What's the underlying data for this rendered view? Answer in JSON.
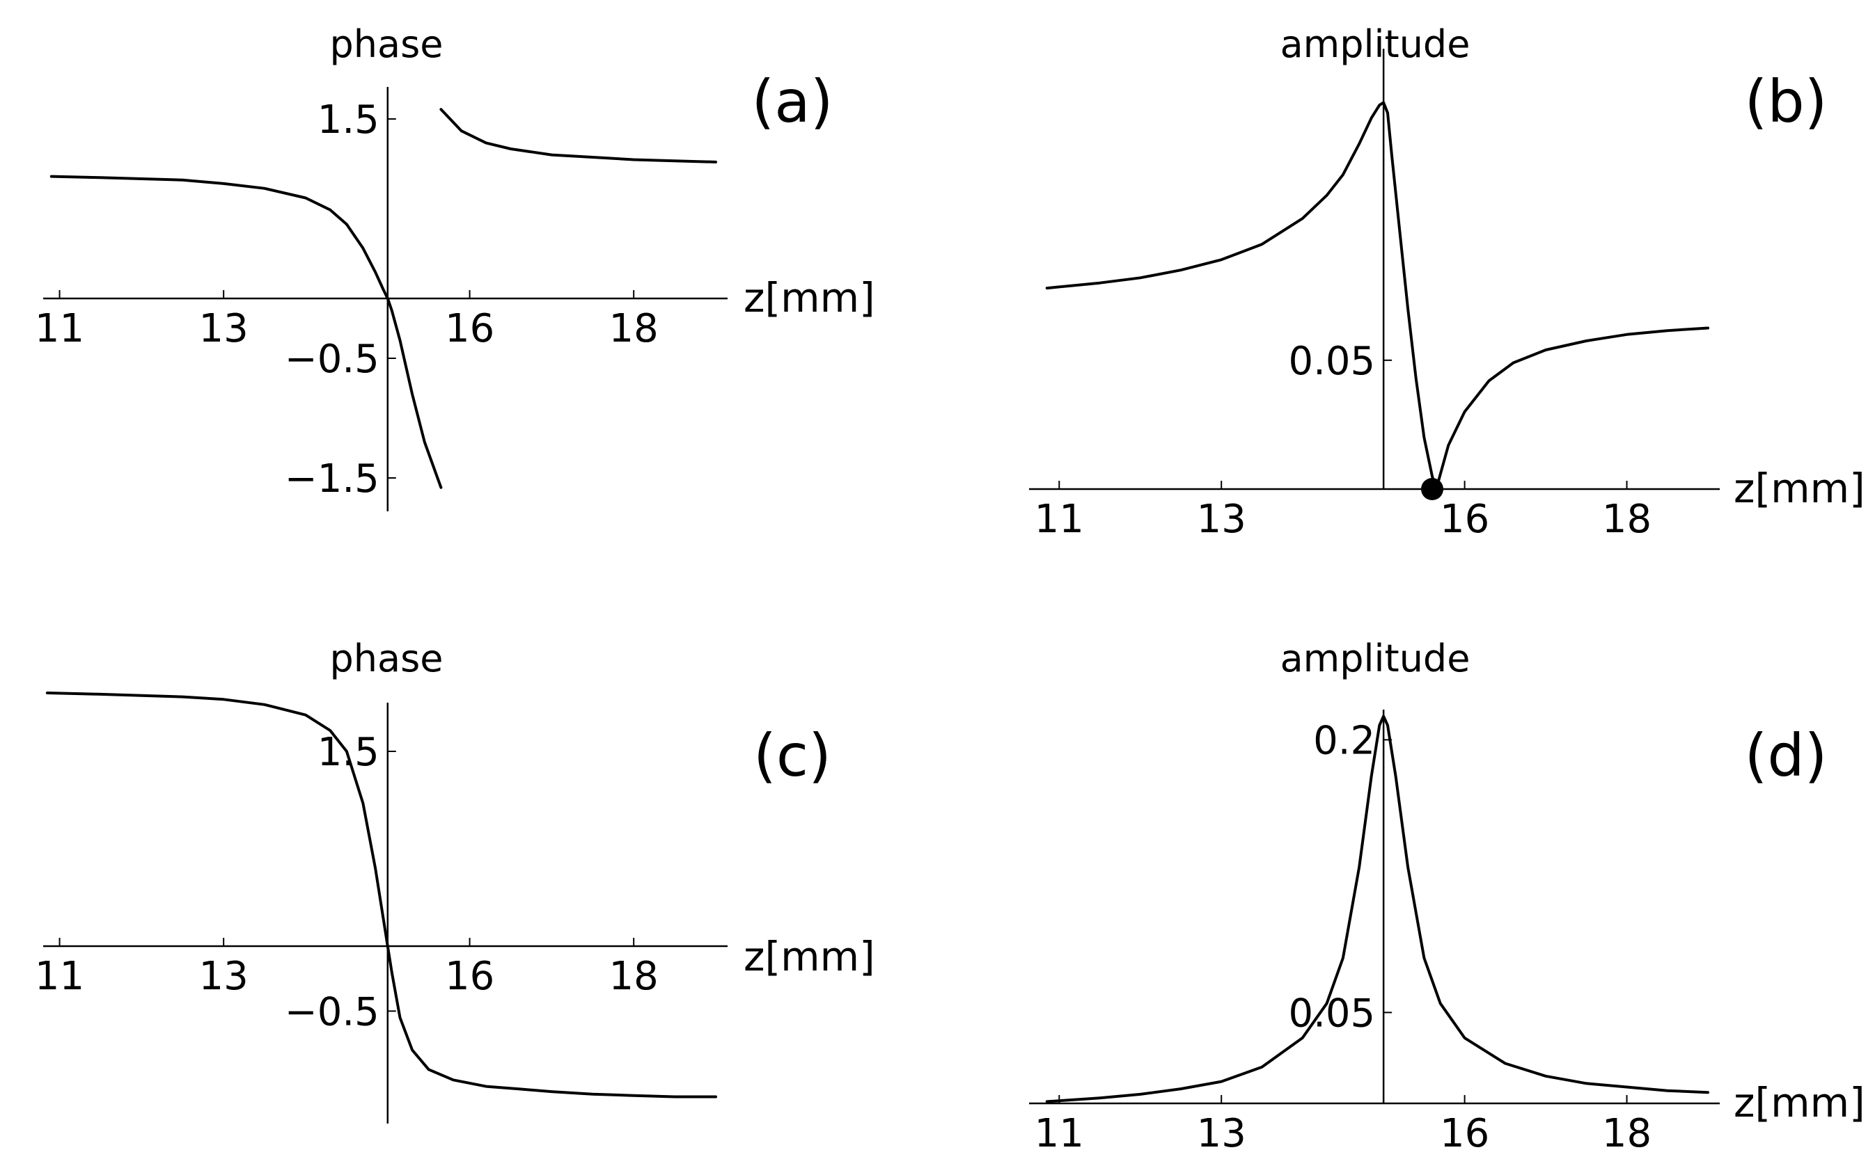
{
  "figure": {
    "panels": [
      {
        "id": "a",
        "label": "(a)",
        "title": "phase"
      },
      {
        "id": "b",
        "label": "(b)",
        "title": "amplitude"
      },
      {
        "id": "c",
        "label": "(c)",
        "title": "phase"
      },
      {
        "id": "d",
        "label": "(d)",
        "title": "amplitude"
      }
    ]
  },
  "chart_data": [
    {
      "panel": "(a)",
      "type": "line",
      "title": "phase",
      "xlabel": "z[mm]",
      "ylabel": "",
      "x_ticks": [
        11,
        13,
        16,
        18
      ],
      "y_ticks": [
        1.5,
        -0.5,
        -1.5
      ],
      "xlim": [
        10.8,
        19.0
      ],
      "ylim": [
        -1.75,
        1.75
      ],
      "axes_origin": [
        15,
        0
      ],
      "grid": false,
      "series": [
        {
          "segment": 1,
          "x": [
            10.9,
            11.5,
            12.0,
            12.5,
            13.0,
            13.5,
            14.0,
            14.3,
            14.5,
            14.7,
            14.85,
            14.95,
            15.0,
            15.05,
            15.15,
            15.3,
            15.45,
            15.65
          ],
          "values": [
            1.02,
            1.01,
            1.0,
            0.99,
            0.96,
            0.92,
            0.84,
            0.74,
            0.62,
            0.42,
            0.22,
            0.07,
            0.0,
            -0.1,
            -0.35,
            -0.8,
            -1.2,
            -1.58
          ]
        },
        {
          "segment": 2,
          "x": [
            15.65,
            15.9,
            16.2,
            16.5,
            17.0,
            17.5,
            18.0,
            18.5,
            19.0
          ],
          "values": [
            1.58,
            1.4,
            1.3,
            1.25,
            1.2,
            1.18,
            1.16,
            1.15,
            1.14
          ]
        }
      ]
    },
    {
      "panel": "(b)",
      "type": "line",
      "title": "amplitude",
      "xlabel": "z[mm]",
      "ylabel": "",
      "x_ticks": [
        11,
        13,
        16,
        18
      ],
      "y_ticks": [
        0.05
      ],
      "xlim": [
        10.8,
        19.0
      ],
      "ylim": [
        0.0,
        0.152
      ],
      "axes_origin": [
        15,
        0
      ],
      "grid": false,
      "marker": {
        "x": 15.6,
        "y": 0.0,
        "shape": "filled-circle"
      },
      "series": [
        {
          "x": [
            10.85,
            11.5,
            12.0,
            12.5,
            13.0,
            13.5,
            14.0,
            14.3,
            14.5,
            14.7,
            14.85,
            14.95,
            15.0,
            15.05,
            15.1,
            15.2,
            15.3,
            15.4,
            15.5,
            15.6,
            15.65,
            15.8,
            16.0,
            16.3,
            16.6,
            17.0,
            17.5,
            18.0,
            18.5,
            19.0
          ],
          "values": [
            0.078,
            0.08,
            0.082,
            0.085,
            0.089,
            0.095,
            0.105,
            0.114,
            0.122,
            0.134,
            0.144,
            0.149,
            0.15,
            0.146,
            0.13,
            0.1,
            0.07,
            0.043,
            0.02,
            0.005,
            0.0,
            0.017,
            0.03,
            0.042,
            0.049,
            0.054,
            0.0575,
            0.06,
            0.0615,
            0.0625
          ]
        }
      ]
    },
    {
      "panel": "(c)",
      "type": "line",
      "title": "phase",
      "xlabel": "z[mm]",
      "ylabel": "",
      "x_ticks": [
        11,
        13,
        16,
        18
      ],
      "y_ticks": [
        1.5,
        -0.5
      ],
      "xlim": [
        10.8,
        19.0
      ],
      "ylim": [
        -1.35,
        2.25
      ],
      "axes_origin": [
        15,
        0
      ],
      "grid": false,
      "series": [
        {
          "x": [
            10.85,
            11.5,
            12.0,
            12.5,
            13.0,
            13.5,
            14.0,
            14.3,
            14.5,
            14.7,
            14.85,
            14.95,
            15.0,
            15.05,
            15.15,
            15.3,
            15.5,
            15.8,
            16.2,
            16.6,
            17.0,
            17.5,
            18.0,
            18.5,
            19.0
          ],
          "values": [
            1.95,
            1.94,
            1.93,
            1.92,
            1.9,
            1.86,
            1.78,
            1.66,
            1.5,
            1.1,
            0.6,
            0.2,
            0.0,
            -0.2,
            -0.55,
            -0.8,
            -0.95,
            -1.03,
            -1.08,
            -1.1,
            -1.12,
            -1.14,
            -1.15,
            -1.16,
            -1.16
          ]
        }
      ]
    },
    {
      "panel": "(d)",
      "type": "line",
      "title": "amplitude",
      "xlabel": "z[mm]",
      "ylabel": "",
      "x_ticks": [
        11,
        13,
        16,
        18
      ],
      "y_ticks": [
        0.2,
        0.05
      ],
      "xlim": [
        10.8,
        19.0
      ],
      "ylim": [
        0.0,
        0.23
      ],
      "axes_origin": [
        15,
        0
      ],
      "grid": false,
      "series": [
        {
          "x": [
            10.85,
            11.5,
            12.0,
            12.5,
            13.0,
            13.5,
            14.0,
            14.3,
            14.5,
            14.7,
            14.85,
            14.95,
            15.0,
            15.05,
            15.15,
            15.3,
            15.5,
            15.7,
            16.0,
            16.5,
            17.0,
            17.5,
            18.0,
            18.5,
            19.0
          ],
          "values": [
            0.001,
            0.003,
            0.005,
            0.008,
            0.012,
            0.02,
            0.036,
            0.055,
            0.08,
            0.13,
            0.18,
            0.208,
            0.213,
            0.208,
            0.18,
            0.13,
            0.08,
            0.055,
            0.036,
            0.022,
            0.015,
            0.011,
            0.009,
            0.007,
            0.006
          ]
        }
      ]
    }
  ]
}
